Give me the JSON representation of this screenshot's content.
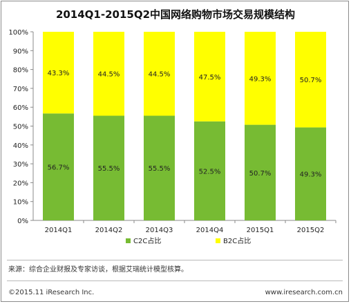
{
  "chart_data": {
    "type": "bar",
    "stacked": true,
    "title": "2014Q1-2015Q2中国网络购物市场交易规模结构",
    "categories": [
      "2014Q1",
      "2014Q2",
      "2014Q3",
      "2014Q4",
      "2015Q1",
      "2015Q2"
    ],
    "series": [
      {
        "name": "C2C占比",
        "values": [
          56.7,
          55.5,
          55.5,
          52.5,
          50.7,
          49.3
        ],
        "labels": [
          "56.7%",
          "55.5%",
          "55.5%",
          "52.5%",
          "50.7%",
          "49.3%"
        ],
        "color": "#77bb33"
      },
      {
        "name": "B2C占比",
        "values": [
          43.3,
          44.5,
          44.5,
          47.5,
          49.3,
          50.7
        ],
        "labels": [
          "43.3%",
          "44.5%",
          "44.5%",
          "47.5%",
          "49.3%",
          "50.7%"
        ],
        "color": "#ffff00"
      }
    ],
    "y_ticks": [
      "0%",
      "10%",
      "20%",
      "30%",
      "40%",
      "50%",
      "60%",
      "70%",
      "80%",
      "90%",
      "100%"
    ],
    "ylim": [
      0,
      100
    ],
    "grid": false,
    "legend_position": "bottom"
  },
  "source_text": "来源：综合企业财报及专家访谈，根据艾瑞统计模型核算。",
  "footer": {
    "left": "©2015.11 iResearch Inc.",
    "right": "www.iresearch.com.cn"
  }
}
